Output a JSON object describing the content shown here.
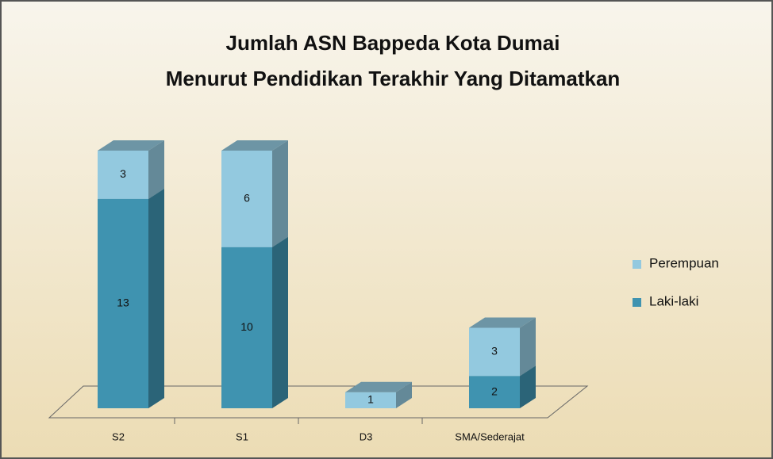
{
  "chart_data": {
    "type": "bar3d_stacked",
    "title": "Jumlah ASN Bappeda Kota Dumai",
    "subtitle": "Menurut Pendidikan Terakhir Yang Ditamatkan",
    "categories": [
      "S2",
      "S1",
      "D3",
      "SMA/Sederajat"
    ],
    "series": [
      {
        "name": "Laki-laki",
        "color": "#3f93b0",
        "values": [
          13,
          10,
          null,
          2
        ]
      },
      {
        "name": "Perempuan",
        "color": "#93c9df",
        "values": [
          3,
          6,
          1,
          3
        ]
      }
    ],
    "legend": "right"
  }
}
